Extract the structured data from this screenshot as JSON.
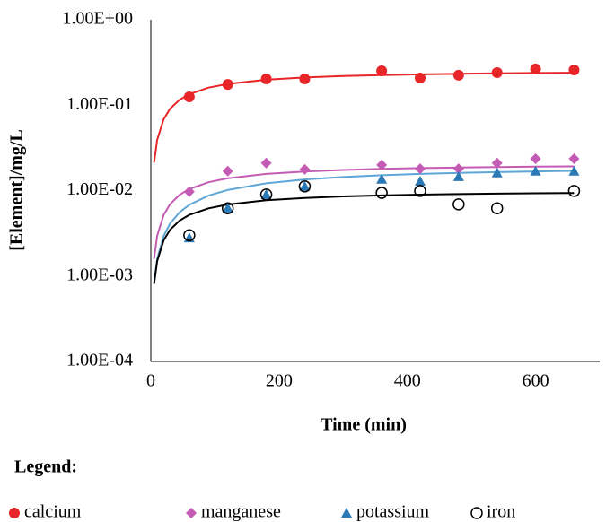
{
  "chart_data": {
    "type": "scatter",
    "log_y": true,
    "xlabel": "Time (min)",
    "ylabel": "[Element]/mg/L",
    "legend_title": "Legend:",
    "legend": "bottom",
    "xlim": [
      0,
      700
    ],
    "xticks": [
      0,
      200,
      400,
      600
    ],
    "ylim": [
      0.0001,
      1
    ],
    "yticks": [
      {
        "value": 0.0001,
        "label": "1.00E-04"
      },
      {
        "value": 0.001,
        "label": "1.00E-03"
      },
      {
        "value": 0.01,
        "label": "1.00E-02"
      },
      {
        "value": 0.1,
        "label": "1.00E-01"
      },
      {
        "value": 1,
        "label": "1.00E+00"
      }
    ],
    "x": [
      60,
      120,
      180,
      240,
      360,
      420,
      480,
      540,
      600,
      660
    ],
    "fit_x": [
      5,
      10,
      20,
      30,
      45,
      60,
      90,
      120,
      180,
      240,
      300,
      360,
      420,
      480,
      540,
      600,
      660
    ],
    "series": [
      {
        "name": "calcium",
        "marker": "circle",
        "color": "#e8262a",
        "fit_color": "#e8262a",
        "values": [
          0.125,
          0.175,
          0.203,
          0.203,
          0.252,
          0.208,
          0.224,
          0.24,
          0.265,
          0.258
        ],
        "fit_values": [
          0.0213,
          0.0394,
          0.0684,
          0.0907,
          0.1158,
          0.1345,
          0.1603,
          0.1773,
          0.1983,
          0.2108,
          0.2191,
          0.225,
          0.2294,
          0.2328,
          0.2356,
          0.2378,
          0.2397
        ]
      },
      {
        "name": "manganese",
        "marker": "diamond",
        "color": "#c45bb5",
        "fit_color": "#c45bb5",
        "values": [
          0.0097,
          0.0169,
          0.021,
          0.0177,
          0.02,
          0.018,
          0.018,
          0.021,
          0.0236,
          0.0236
        ],
        "fit_values": [
          0.00159,
          0.00296,
          0.00519,
          0.00692,
          0.00892,
          0.01041,
          0.01252,
          0.01392,
          0.01568,
          0.01674,
          0.01745,
          0.01796,
          0.01834,
          0.01863,
          0.01887,
          0.01906,
          0.01922
        ]
      },
      {
        "name": "potassium",
        "marker": "triangle",
        "color": "#2a7ab8",
        "fit_color": "#5ea6d6",
        "values": [
          0.0028,
          0.00625,
          0.009,
          0.0112,
          0.0136,
          0.0129,
          0.0146,
          0.0161,
          0.0169,
          0.0169
        ],
        "fit_values": [
          0.00083,
          0.00159,
          0.00294,
          0.00411,
          0.00559,
          0.00682,
          0.00874,
          0.01017,
          0.01216,
          0.01348,
          0.01442,
          0.01513,
          0.01567,
          0.01611,
          0.01646,
          0.01676,
          0.01701
        ]
      },
      {
        "name": "iron",
        "marker": "open-circle",
        "color": "#000000",
        "fit_color": "#000000",
        "values": [
          0.003,
          0.0062,
          0.009,
          0.0112,
          0.0094,
          0.0099,
          0.0069,
          0.0062,
          null,
          0.0099
        ],
        "fit_values": [
          0.00081,
          0.0015,
          0.00262,
          0.00348,
          0.00446,
          0.00519,
          0.0062,
          0.00688,
          0.00771,
          0.00821,
          0.00855,
          0.00878,
          0.00896,
          0.0091,
          0.00921,
          0.00929,
          0.00937
        ]
      }
    ]
  }
}
